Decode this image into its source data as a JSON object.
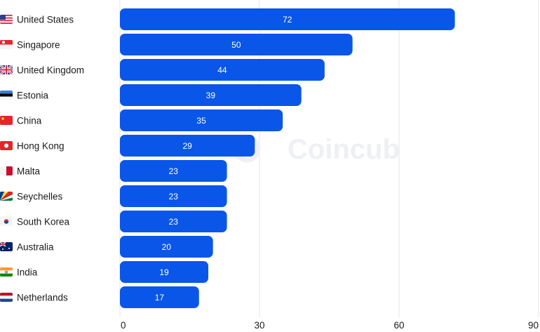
{
  "chart_data": {
    "type": "bar",
    "orientation": "horizontal",
    "categories": [
      "United States",
      "Singapore",
      "United Kingdom",
      "Estonia",
      "China",
      "Hong Kong",
      "Malta",
      "Seychelles",
      "South Korea",
      "Australia",
      "India",
      "Netherlands"
    ],
    "flags": [
      "us-flag-icon",
      "sg-flag-icon",
      "gb-flag-icon",
      "ee-flag-icon",
      "cn-flag-icon",
      "hk-flag-icon",
      "mt-flag-icon",
      "sc-flag-icon",
      "kr-flag-icon",
      "au-flag-icon",
      "in-flag-icon",
      "nl-flag-icon"
    ],
    "values": [
      72,
      50,
      44,
      39,
      35,
      29,
      23,
      23,
      23,
      20,
      19,
      17
    ],
    "xlim": [
      0,
      90
    ],
    "xticks": [
      0,
      30,
      60,
      90
    ],
    "grid": true,
    "bar_color": "#0a56e8",
    "watermark": "Coincub"
  }
}
